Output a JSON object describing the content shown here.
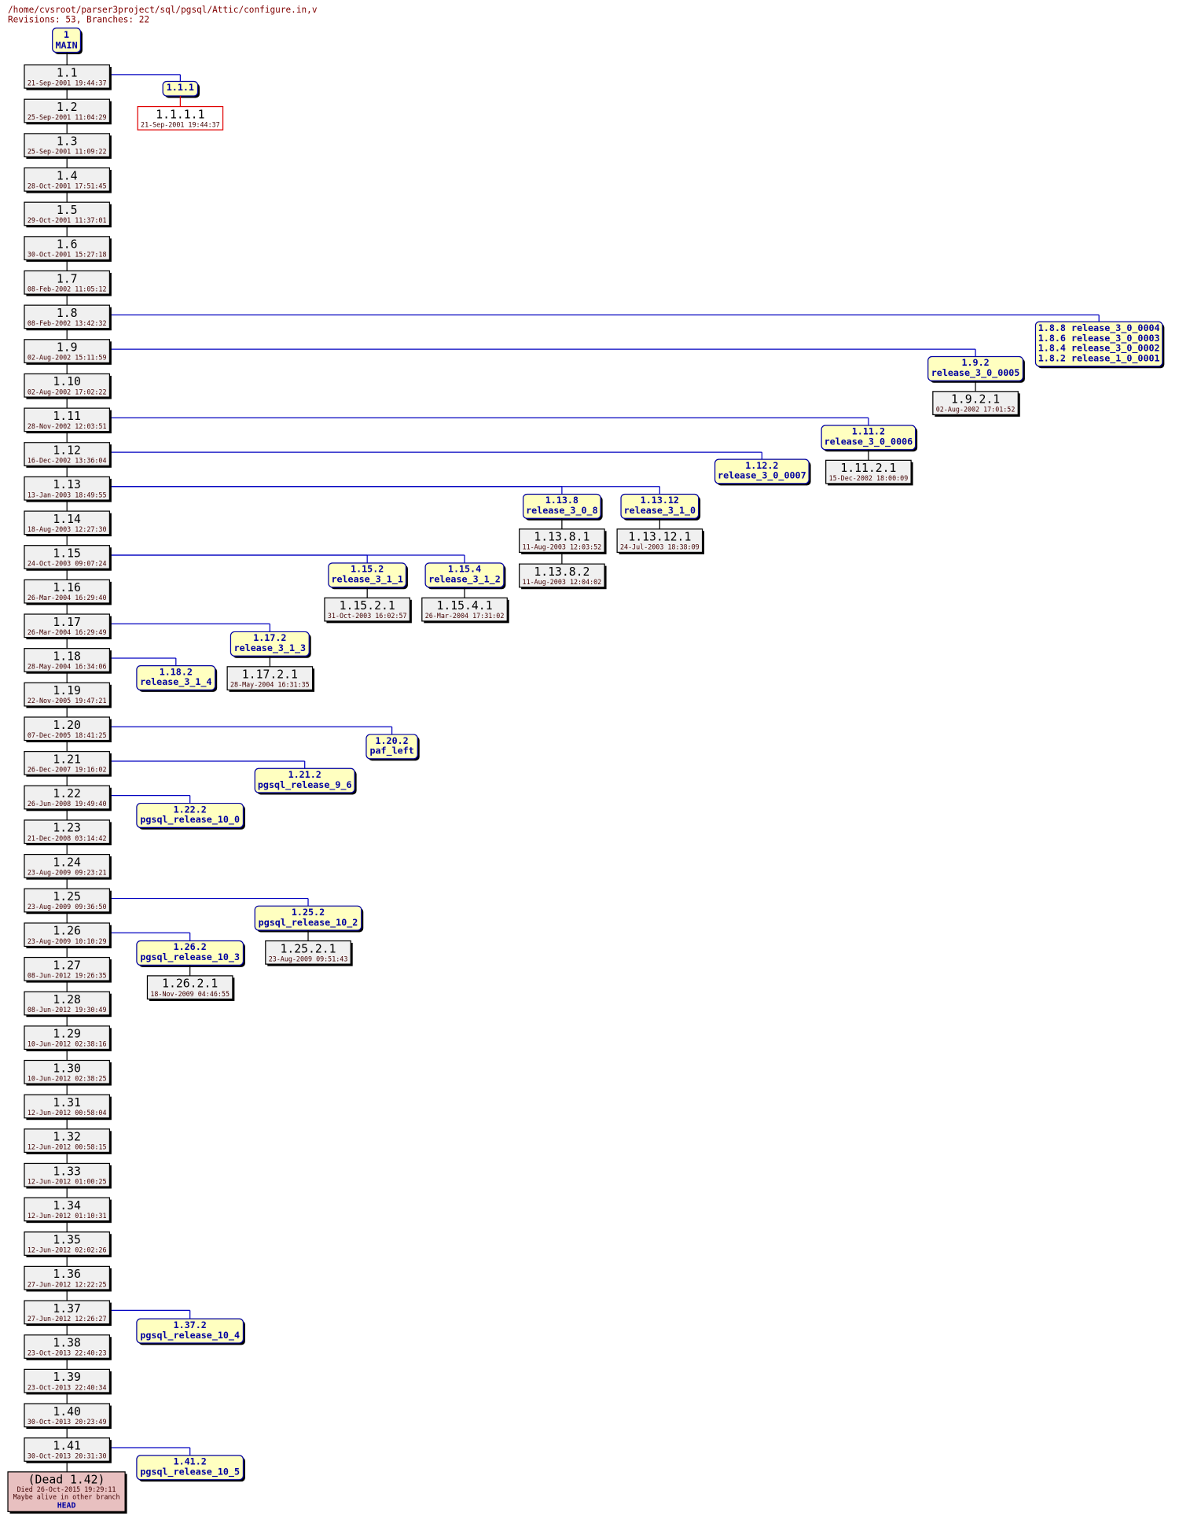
{
  "header": {
    "path": "/home/cvsroot/parser3project/sql/pgsql/Attic/configure.in,v",
    "summary": "Revisions: 53, Branches: 22"
  },
  "main": {
    "rev": "1",
    "name": "MAIN"
  },
  "trunk": [
    {
      "rev": "1.1",
      "date": "21-Sep-2001 19:44:37",
      "branches": [
        {
          "labels": [
            {
              "rev": "1.1.1"
            }
          ],
          "revisions": [
            {
              "rev": "1.1.1.1",
              "date": "21-Sep-2001 19:44:37"
            }
          ]
        }
      ]
    },
    {
      "rev": "1.2",
      "date": "25-Sep-2001 11:04:29"
    },
    {
      "rev": "1.3",
      "date": "25-Sep-2001 11:09:22"
    },
    {
      "rev": "1.4",
      "date": "28-Oct-2001 17:51:45"
    },
    {
      "rev": "1.5",
      "date": "29-Oct-2001 11:37:01"
    },
    {
      "rev": "1.6",
      "date": "30-Oct-2001 15:27:18"
    },
    {
      "rev": "1.7",
      "date": "08-Feb-2002 11:05:12"
    },
    {
      "rev": "1.8",
      "date": "08-Feb-2002 13:42:32",
      "branches": [
        {
          "labels": [
            {
              "rev": "1.8.8",
              "tag": "release_3_0_0004"
            },
            {
              "rev": "1.8.6",
              "tag": "release_3_0_0003"
            },
            {
              "rev": "1.8.4",
              "tag": "release_3_0_0002"
            },
            {
              "rev": "1.8.2",
              "tag": "release_1_0_0001"
            }
          ]
        }
      ]
    },
    {
      "rev": "1.9",
      "date": "02-Aug-2002 15:11:59",
      "branches": [
        {
          "labels": [
            {
              "rev": "1.9.2",
              "tag": "release_3_0_0005"
            }
          ],
          "revisions": [
            {
              "rev": "1.9.2.1",
              "date": "02-Aug-2002 17:01:52"
            }
          ]
        }
      ]
    },
    {
      "rev": "1.10",
      "date": "02-Aug-2002 17:02:22"
    },
    {
      "rev": "1.11",
      "date": "28-Nov-2002 12:03:51",
      "branches": [
        {
          "labels": [
            {
              "rev": "1.11.2",
              "tag": "release_3_0_0006"
            }
          ],
          "revisions": [
            {
              "rev": "1.11.2.1",
              "date": "15-Dec-2002 18:00:09"
            }
          ]
        }
      ]
    },
    {
      "rev": "1.12",
      "date": "16-Dec-2002 13:36:04",
      "branches": [
        {
          "labels": [
            {
              "rev": "1.12.2",
              "tag": "release_3_0_0007"
            }
          ]
        }
      ]
    },
    {
      "rev": "1.13",
      "date": "13-Jan-2003 18:49:55",
      "branches": [
        {
          "labels": [
            {
              "rev": "1.13.8",
              "tag": "release_3_0_8"
            }
          ],
          "revisions": [
            {
              "rev": "1.13.8.1",
              "date": "11-Aug-2003 12:03:52"
            },
            {
              "rev": "1.13.8.2",
              "date": "11-Aug-2003 12:04:02"
            }
          ]
        },
        {
          "labels": [
            {
              "rev": "1.13.12",
              "tag": "release_3_1_0"
            }
          ],
          "revisions": [
            {
              "rev": "1.13.12.1",
              "date": "24-Jul-2003 18:38:09"
            }
          ]
        }
      ]
    },
    {
      "rev": "1.14",
      "date": "18-Aug-2003 12:27:30"
    },
    {
      "rev": "1.15",
      "date": "24-Oct-2003 09:07:24",
      "branches": [
        {
          "labels": [
            {
              "rev": "1.15.2",
              "tag": "release_3_1_1"
            }
          ],
          "revisions": [
            {
              "rev": "1.15.2.1",
              "date": "31-Oct-2003 16:02:57"
            }
          ]
        },
        {
          "labels": [
            {
              "rev": "1.15.4",
              "tag": "release_3_1_2"
            }
          ],
          "revisions": [
            {
              "rev": "1.15.4.1",
              "date": "26-Mar-2004 17:31:02"
            }
          ]
        }
      ]
    },
    {
      "rev": "1.16",
      "date": "26-Mar-2004 16:29:40"
    },
    {
      "rev": "1.17",
      "date": "26-Mar-2004 16:29:49",
      "branches": [
        {
          "labels": [
            {
              "rev": "1.17.2",
              "tag": "release_3_1_3"
            }
          ],
          "revisions": [
            {
              "rev": "1.17.2.1",
              "date": "28-May-2004 16:31:35"
            }
          ]
        }
      ]
    },
    {
      "rev": "1.18",
      "date": "28-May-2004 16:34:06",
      "branches": [
        {
          "labels": [
            {
              "rev": "1.18.2",
              "tag": "release_3_1_4"
            }
          ]
        }
      ]
    },
    {
      "rev": "1.19",
      "date": "22-Nov-2005 19:47:21"
    },
    {
      "rev": "1.20",
      "date": "07-Dec-2005 18:41:25",
      "branches": [
        {
          "labels": [
            {
              "rev": "1.20.2",
              "tag": "paf_left"
            }
          ]
        }
      ]
    },
    {
      "rev": "1.21",
      "date": "26-Dec-2007 19:16:02",
      "branches": [
        {
          "labels": [
            {
              "rev": "1.21.2",
              "tag": "pgsql_release_9_6"
            }
          ]
        }
      ]
    },
    {
      "rev": "1.22",
      "date": "26-Jun-2008 19:49:40",
      "branches": [
        {
          "labels": [
            {
              "rev": "1.22.2",
              "tag": "pgsql_release_10_0"
            }
          ]
        }
      ]
    },
    {
      "rev": "1.23",
      "date": "21-Dec-2008 03:14:42"
    },
    {
      "rev": "1.24",
      "date": "23-Aug-2009 09:23:21"
    },
    {
      "rev": "1.25",
      "date": "23-Aug-2009 09:36:50",
      "branches": [
        {
          "labels": [
            {
              "rev": "1.25.2",
              "tag": "pgsql_release_10_2"
            }
          ],
          "revisions": [
            {
              "rev": "1.25.2.1",
              "date": "23-Aug-2009 09:51:43"
            }
          ]
        }
      ]
    },
    {
      "rev": "1.26",
      "date": "23-Aug-2009 10:10:29",
      "branches": [
        {
          "labels": [
            {
              "rev": "1.26.2",
              "tag": "pgsql_release_10_3"
            }
          ],
          "revisions": [
            {
              "rev": "1.26.2.1",
              "date": "18-Nov-2009 04:46:55"
            }
          ]
        }
      ]
    },
    {
      "rev": "1.27",
      "date": "08-Jun-2012 19:26:35"
    },
    {
      "rev": "1.28",
      "date": "08-Jun-2012 19:30:49"
    },
    {
      "rev": "1.29",
      "date": "10-Jun-2012 02:38:16"
    },
    {
      "rev": "1.30",
      "date": "10-Jun-2012 02:38:25"
    },
    {
      "rev": "1.31",
      "date": "12-Jun-2012 00:58:04"
    },
    {
      "rev": "1.32",
      "date": "12-Jun-2012 00:58:15"
    },
    {
      "rev": "1.33",
      "date": "12-Jun-2012 01:00:25"
    },
    {
      "rev": "1.34",
      "date": "12-Jun-2012 01:10:31"
    },
    {
      "rev": "1.35",
      "date": "12-Jun-2012 02:02:26"
    },
    {
      "rev": "1.36",
      "date": "27-Jun-2012 12:22:25"
    },
    {
      "rev": "1.37",
      "date": "27-Jun-2012 12:26:27",
      "branches": [
        {
          "labels": [
            {
              "rev": "1.37.2",
              "tag": "pgsql_release_10_4"
            }
          ]
        }
      ]
    },
    {
      "rev": "1.38",
      "date": "23-Oct-2013 22:40:23"
    },
    {
      "rev": "1.39",
      "date": "23-Oct-2013 22:40:34"
    },
    {
      "rev": "1.40",
      "date": "30-Oct-2013 20:23:49"
    },
    {
      "rev": "1.41",
      "date": "30-Oct-2013 20:31:30",
      "branches": [
        {
          "labels": [
            {
              "rev": "1.41.2",
              "tag": "pgsql_release_10_5"
            }
          ]
        }
      ]
    }
  ],
  "dead": {
    "title": "(Dead 1.42)",
    "died": "Died 26-Oct-2015 19:29:11",
    "note": "Maybe alive in other branch",
    "branch": "HEAD"
  }
}
